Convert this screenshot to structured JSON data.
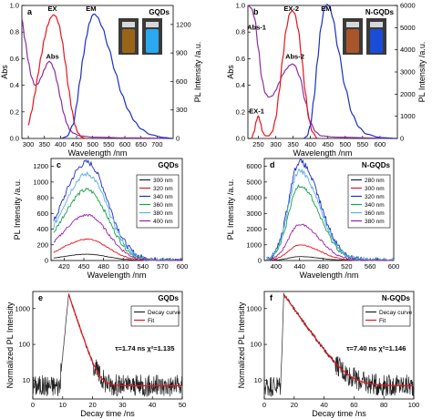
{
  "chart_data": [
    {
      "panel": "a",
      "type": "line",
      "sample_label": "GQDs",
      "xlabel": "Wavelength /nm",
      "ylabel": "Abs",
      "y2label": "PL Intensity /a.u.",
      "xlim": [
        280,
        750
      ],
      "ylim": [
        0,
        1.0
      ],
      "y2lim": [
        0,
        1400
      ],
      "x_ticks": [
        300,
        350,
        400,
        450,
        500,
        550,
        600,
        650,
        700
      ],
      "y_ticks": [
        0.0,
        0.2,
        0.4,
        0.6,
        0.8,
        1.0
      ],
      "y_tick_labels": [
        "0.0",
        "0.2",
        "0.4",
        "0.6",
        "0.8",
        "1.0"
      ],
      "y2_ticks": [
        0,
        300,
        600,
        900,
        1200
      ],
      "y2_tick_labels": [
        "0",
        "300",
        "600",
        "900",
        "1200"
      ],
      "annotations": [
        {
          "text": "EX",
          "x": 375,
          "y": 0.96
        },
        {
          "text": "EM",
          "x": 495,
          "y": 0.96
        },
        {
          "text": "Abs",
          "x": 375,
          "y": 0.6
        }
      ],
      "photo_colors": [
        "#9a6418",
        "#2aa8f0"
      ],
      "series": [
        {
          "label": "Abs",
          "axis": "left",
          "color": "#8b2fa0",
          "points": [
            [
              280,
              0.9
            ],
            [
              290,
              0.74
            ],
            [
              300,
              0.58
            ],
            [
              310,
              0.46
            ],
            [
              320,
              0.4
            ],
            [
              330,
              0.41
            ],
            [
              340,
              0.46
            ],
            [
              350,
              0.52
            ],
            [
              360,
              0.57
            ],
            [
              365,
              0.58
            ],
            [
              370,
              0.57
            ],
            [
              380,
              0.52
            ],
            [
              390,
              0.42
            ],
            [
              400,
              0.3
            ],
            [
              410,
              0.19
            ],
            [
              420,
              0.11
            ],
            [
              430,
              0.06
            ],
            [
              440,
              0.04
            ],
            [
              460,
              0.02
            ],
            [
              500,
              0.01
            ],
            [
              600,
              0.005
            ],
            [
              750,
              0.0
            ]
          ]
        },
        {
          "label": "EX",
          "axis": "left",
          "color": "#e8141c",
          "points": [
            [
              300,
              0.1
            ],
            [
              310,
              0.2
            ],
            [
              320,
              0.33
            ],
            [
              330,
              0.48
            ],
            [
              340,
              0.62
            ],
            [
              350,
              0.75
            ],
            [
              360,
              0.85
            ],
            [
              370,
              0.91
            ],
            [
              378,
              0.93
            ],
            [
              385,
              0.92
            ],
            [
              395,
              0.86
            ],
            [
              405,
              0.74
            ],
            [
              415,
              0.57
            ],
            [
              425,
              0.38
            ],
            [
              435,
              0.22
            ],
            [
              445,
              0.1
            ],
            [
              455,
              0.04
            ],
            [
              465,
              0.01
            ],
            [
              480,
              0.0
            ]
          ]
        },
        {
          "label": "EM",
          "axis": "right",
          "color": "#1a2fc8",
          "points": [
            [
              400,
              0
            ],
            [
              420,
              20
            ],
            [
              440,
              150
            ],
            [
              450,
              350
            ],
            [
              460,
              600
            ],
            [
              470,
              850
            ],
            [
              480,
              1060
            ],
            [
              490,
              1220
            ],
            [
              500,
              1300
            ],
            [
              505,
              1310
            ],
            [
              515,
              1280
            ],
            [
              530,
              1170
            ],
            [
              550,
              950
            ],
            [
              570,
              700
            ],
            [
              590,
              470
            ],
            [
              610,
              300
            ],
            [
              630,
              180
            ],
            [
              650,
              100
            ],
            [
              680,
              40
            ],
            [
              720,
              10
            ],
            [
              750,
              0
            ]
          ]
        }
      ]
    },
    {
      "panel": "b",
      "type": "line",
      "sample_label": "N-GQDs",
      "xlabel": "Wavelength /nm",
      "ylabel": "Abs",
      "y2label": "PL Intensity /a.u.",
      "xlim": [
        220,
        650
      ],
      "ylim": [
        0,
        1.0
      ],
      "y2lim": [
        0,
        6000
      ],
      "x_ticks": [
        250,
        300,
        350,
        400,
        450,
        500,
        550,
        600
      ],
      "y_ticks": [
        0.0,
        0.2,
        0.4,
        0.6,
        0.8,
        1.0
      ],
      "y_tick_labels": [
        "0.0",
        "0.2",
        "0.4",
        "0.6",
        "0.8",
        "1.0"
      ],
      "y2_ticks": [
        0,
        1000,
        2000,
        3000,
        4000,
        5000,
        6000
      ],
      "y2_tick_labels": [
        "0",
        "1000",
        "2000",
        "3000",
        "4000",
        "5000",
        "6000"
      ],
      "annotations": [
        {
          "text": "Abs-1",
          "x": 245,
          "y": 0.82
        },
        {
          "text": "EX-1",
          "x": 245,
          "y": 0.19
        },
        {
          "text": "EX-2",
          "x": 345,
          "y": 0.96
        },
        {
          "text": "Abs-2",
          "x": 355,
          "y": 0.6
        },
        {
          "text": "EM",
          "x": 445,
          "y": 0.96
        }
      ],
      "photo_colors": [
        "#a8552a",
        "#1a4cd8"
      ],
      "series": [
        {
          "label": "Abs",
          "axis": "left",
          "color": "#8b2fa0",
          "points": [
            [
              220,
              1.0
            ],
            [
              230,
              0.98
            ],
            [
              240,
              0.9
            ],
            [
              250,
              0.68
            ],
            [
              260,
              0.45
            ],
            [
              270,
              0.34
            ],
            [
              280,
              0.31
            ],
            [
              290,
              0.32
            ],
            [
              300,
              0.36
            ],
            [
              310,
              0.42
            ],
            [
              320,
              0.48
            ],
            [
              330,
              0.52
            ],
            [
              340,
              0.55
            ],
            [
              348,
              0.56
            ],
            [
              355,
              0.55
            ],
            [
              370,
              0.46
            ],
            [
              385,
              0.28
            ],
            [
              400,
              0.12
            ],
            [
              415,
              0.05
            ],
            [
              430,
              0.02
            ],
            [
              470,
              0.01
            ],
            [
              650,
              0.0
            ]
          ]
        },
        {
          "label": "EX-1",
          "axis": "left",
          "color": "#e8141c",
          "points": [
            [
              230,
              0.0
            ],
            [
              238,
              0.05
            ],
            [
              244,
              0.13
            ],
            [
              250,
              0.17
            ],
            [
              256,
              0.12
            ],
            [
              262,
              0.05
            ],
            [
              270,
              0.02
            ],
            [
              280,
              0.02
            ],
            [
              290,
              0.05
            ],
            [
              300,
              0.15
            ],
            [
              310,
              0.35
            ],
            [
              320,
              0.6
            ],
            [
              330,
              0.82
            ],
            [
              340,
              0.94
            ],
            [
              348,
              0.96
            ],
            [
              355,
              0.94
            ],
            [
              365,
              0.82
            ],
            [
              375,
              0.6
            ],
            [
              385,
              0.35
            ],
            [
              395,
              0.15
            ],
            [
              405,
              0.05
            ],
            [
              420,
              0.0
            ]
          ]
        },
        {
          "label": "EM",
          "axis": "right",
          "color": "#1a2fc8",
          "points": [
            [
              380,
              0
            ],
            [
              390,
              100
            ],
            [
              400,
              600
            ],
            [
              410,
              1800
            ],
            [
              420,
              3500
            ],
            [
              430,
              5000
            ],
            [
              440,
              5900
            ],
            [
              448,
              6050
            ],
            [
              455,
              5950
            ],
            [
              465,
              5400
            ],
            [
              480,
              4000
            ],
            [
              500,
              2300
            ],
            [
              520,
              1100
            ],
            [
              540,
              500
            ],
            [
              560,
              200
            ],
            [
              600,
              40
            ],
            [
              650,
              0
            ]
          ]
        }
      ]
    },
    {
      "panel": "c",
      "type": "line",
      "legend_title": "GQDs",
      "xlabel": "Wavelength /nm",
      "ylabel": "PL Intensity /a.u.",
      "xlim": [
        400,
        600
      ],
      "ylim": [
        0,
        1300
      ],
      "x_ticks": [
        420,
        450,
        480,
        510,
        540,
        570,
        600
      ],
      "y_ticks": [
        0,
        200,
        400,
        600,
        800,
        1000,
        1200
      ],
      "legend": "top-right",
      "peak_x": 455,
      "widths": [
        50,
        42
      ],
      "series": [
        {
          "name": "300 nm",
          "color": "#222222",
          "peak": 80
        },
        {
          "name": "320 nm",
          "color": "#e8141c",
          "peak": 270
        },
        {
          "name": "340 nm",
          "color": "#1a2fc8",
          "peak": 1250
        },
        {
          "name": "360 nm",
          "color": "#1aa04a",
          "peak": 900
        },
        {
          "name": "380 nm",
          "color": "#5ab0e0",
          "peak": 1100
        },
        {
          "name": "400 nm",
          "color": "#9b1ea8",
          "peak": 580
        }
      ]
    },
    {
      "panel": "d",
      "type": "line",
      "legend_title": "N-GQDs",
      "xlabel": "Wavelength /nm",
      "ylabel": "PL Intensity /a.u.",
      "xlim": [
        380,
        600
      ],
      "ylim": [
        0,
        6500
      ],
      "x_ticks": [
        400,
        440,
        480,
        520,
        560,
        600
      ],
      "y_ticks": [
        0,
        1000,
        2000,
        3000,
        4000,
        5000,
        6000
      ],
      "legend": "top-right",
      "peak_x": 440,
      "widths": [
        25,
        45
      ],
      "series": [
        {
          "name": "280 nm",
          "color": "#222222",
          "peak": 250
        },
        {
          "name": "300 nm",
          "color": "#e8141c",
          "peak": 1000
        },
        {
          "name": "320 nm",
          "color": "#1a2fc8",
          "peak": 6300
        },
        {
          "name": "340 nm",
          "color": "#1aa04a",
          "peak": 4800
        },
        {
          "name": "360 nm",
          "color": "#5ab0e0",
          "peak": 5700
        },
        {
          "name": "380 nm",
          "color": "#9b1ea8",
          "peak": 2300
        }
      ]
    },
    {
      "panel": "e",
      "type": "line",
      "legend_title": "GQDs",
      "xlabel": "Decay time /ns",
      "ylabel": "Normalized PL Intensity",
      "xlim": [
        0,
        50
      ],
      "ylim_log": [
        3,
        3000
      ],
      "y_scale": "log",
      "x_ticks": [
        0,
        10,
        20,
        30,
        40,
        50
      ],
      "y_ticks": [
        10,
        100,
        1000
      ],
      "legend": "top-right",
      "legend_entries": [
        "Decay curve",
        "Fit"
      ],
      "legend_colors": [
        "#222222",
        "#e8141c"
      ],
      "annotation": "τ=1.74 ns   χ²=1.135",
      "decay_params": {
        "t0": 12,
        "peak": 2500,
        "tau": 1.74,
        "baseline": 7,
        "rise_start": 9
      }
    },
    {
      "panel": "f",
      "type": "line",
      "legend_title": "N-GQDs",
      "xlabel": "Decay time /ns",
      "ylabel": "Normalized PL Intensity",
      "xlim": [
        0,
        100
      ],
      "ylim_log": [
        3,
        3000
      ],
      "y_scale": "log",
      "x_ticks": [
        0,
        20,
        40,
        60,
        80,
        100
      ],
      "y_ticks": [
        10,
        100,
        1000
      ],
      "legend": "top-right",
      "legend_entries": [
        "Decay curve",
        "Fit"
      ],
      "legend_colors": [
        "#222222",
        "#e8141c"
      ],
      "annotation": "τ=7.40 ns   χ²=1.146",
      "decay_params": {
        "t0": 13,
        "peak": 2500,
        "tau": 7.4,
        "baseline": 7,
        "rise_start": 11
      }
    }
  ]
}
